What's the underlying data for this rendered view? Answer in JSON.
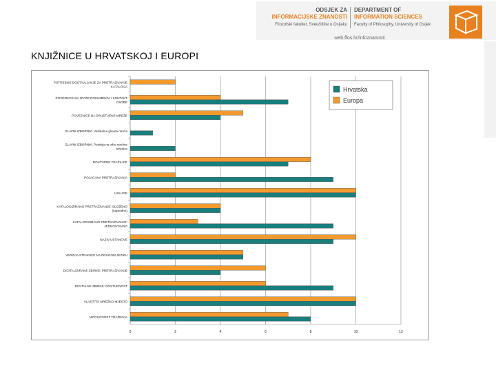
{
  "header": {
    "dept_hr_line1": "ODSJEK ZA",
    "dept_hr_line2": "INFORMACIJSKE ZNANOSTI",
    "faculty_hr": "Filozofski fakultet, Sveučilište u Osijeku",
    "dept_en_line1": "DEPARTMENT OF",
    "dept_en_line2": "INFORMATION SCIENCES",
    "faculty_en": "Faculty of Philosophy, University of Osijek",
    "url": "web.ffos.hr/infoznanosti"
  },
  "page_title": "KNJIŽNICE U HRVATSKOJ I EUROPI",
  "colors": {
    "hrvatska": "#1a7f7c",
    "europa": "#f29a2e",
    "grid": "#8c8c8c"
  },
  "chart_data": {
    "type": "bar",
    "orientation": "horizontal",
    "title": "",
    "categories": [
      "POTREBNO DOSTAVLJANJE ZA PRETRAŽIVANJE KATALOGA",
      "POVEZNICE NA IZVOR DOKUMENTA / KONTAKT OSOBE",
      "POVEZNICE NA DRUŠTVENE MREŽE",
      "GLAVNI IZBORNIK: Vertikalna glavna mreža",
      "GLAVNI IZBORNIK: Pozicija na vrhu mrežne stranice",
      "DOSTUPNE TRAŽILICE",
      "POJAČANA PRETRAŽIVANJA",
      "USLUGE",
      "KATALOGIZIRANO PRETRAŽIVANJE: SLOŽENO (napredno)",
      "KATALOGIZIRANO PRETRAŽIVANJE: JEDNOSTAVNO",
      "NAZIV USTANOVE",
      "VERZIJA STRANICE NA DRUGOM JEZIKU",
      "DIGITALIZIRANE ZBIRKE: PRETRAŽIVANJE",
      "DIGITALNE ZBIRKE: DOSTUPNOST",
      "VLASTITO MREŽNO MJESTO",
      "MOGUĆNOST TRAŽENJA"
    ],
    "series": [
      {
        "name": "Hrvatska",
        "values": [
          0,
          7,
          4,
          1,
          2,
          7,
          9,
          10,
          4,
          9,
          9,
          5,
          4,
          9,
          10,
          8
        ]
      },
      {
        "name": "Europa",
        "values": [
          2,
          4,
          5,
          0,
          0,
          8,
          2,
          10,
          4,
          3,
          10,
          5,
          6,
          6,
          10,
          7
        ]
      }
    ],
    "xlim": [
      0,
      12
    ],
    "xticks": [
      0,
      2,
      4,
      6,
      8,
      10,
      12
    ],
    "grid": true,
    "legend_position": "top-right"
  }
}
